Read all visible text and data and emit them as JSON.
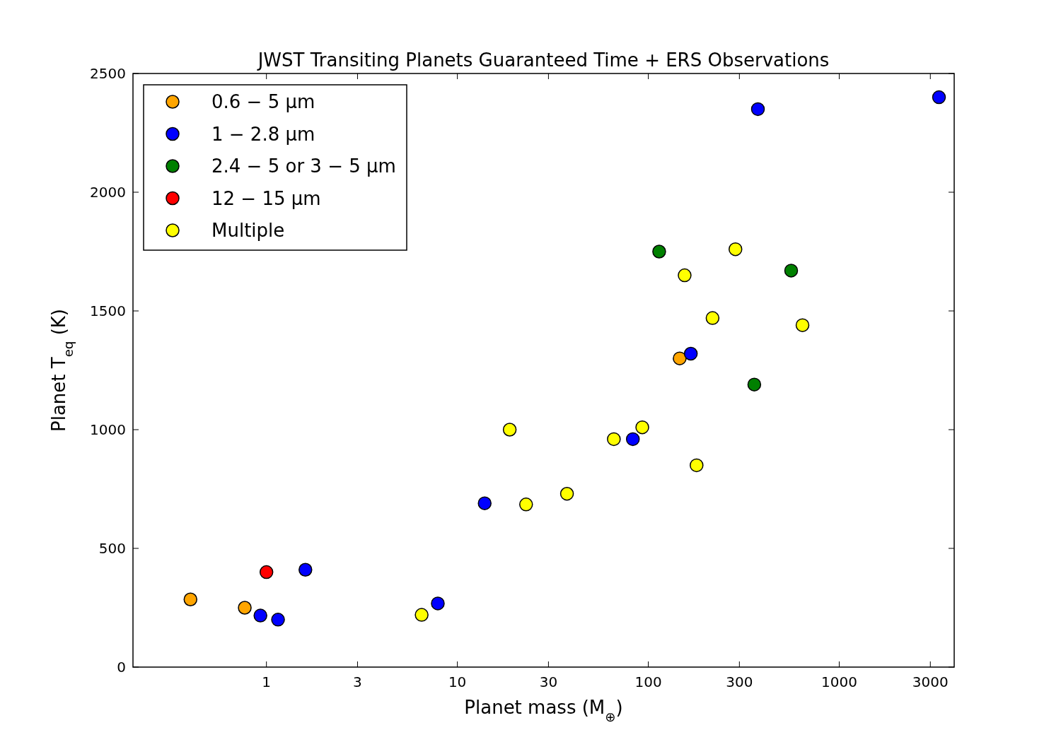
{
  "chart_data": {
    "type": "scatter",
    "title": "JWST Transiting Planets Guaranteed Time + ERS Observations",
    "xlabel": "Planet mass (M$_{⊕}$)",
    "ylabel": "Planet T$_{eq}$ (K)",
    "log": "x",
    "xlim": [
      0.2,
      4000
    ],
    "xticks": [
      1,
      3,
      10,
      30,
      100,
      300,
      1000,
      3000
    ],
    "ylim": [
      0,
      2500
    ],
    "yticks": [
      0,
      500,
      1000,
      1500,
      2000,
      2500
    ],
    "legend": "top left",
    "marker": "circle",
    "series": [
      {
        "name": "0.6 − 5 μm",
        "color": "#ffa500",
        "x": [
          0.4,
          0.77,
          146
        ],
        "values": [
          285,
          250,
          1300
        ]
      },
      {
        "name": "1 − 2.8 μm",
        "color": "#0000ff",
        "x": [
          0.93,
          1.15,
          1.6,
          7.9,
          13.9,
          83,
          167,
          375,
          3330
        ],
        "values": [
          217,
          200,
          410,
          268,
          690,
          960,
          1320,
          2350,
          2400
        ]
      },
      {
        "name": "2.4 − 5 or 3 − 5 μm",
        "color": "#008000",
        "x": [
          114,
          560,
          359
        ],
        "values": [
          1750,
          1670,
          1190
        ]
      },
      {
        "name": "12 − 15 μm",
        "color": "#ff0000",
        "x": [
          1.0
        ],
        "values": [
          400
        ]
      },
      {
        "name": "Multiple",
        "color": "#ffff00",
        "x": [
          6.5,
          18.8,
          22.9,
          37.5,
          66,
          93,
          155,
          179,
          217,
          286,
          642
        ],
        "values": [
          220,
          1000,
          685,
          730,
          960,
          1010,
          1650,
          850,
          1470,
          1760,
          1440
        ]
      }
    ]
  }
}
